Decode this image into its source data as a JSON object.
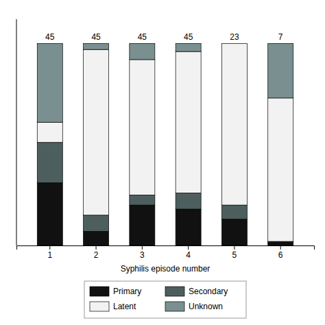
{
  "chart_data": {
    "type": "bar",
    "stacked": true,
    "categories": [
      "1",
      "2",
      "3",
      "4",
      "5",
      "6"
    ],
    "series": [
      {
        "name": "Primary",
        "color": "#111111",
        "values": [
          31,
          7,
          20,
          18,
          13,
          2
        ]
      },
      {
        "name": "Secondary",
        "color": "#4d5e5e",
        "values": [
          20,
          8,
          5,
          8,
          7,
          0
        ]
      },
      {
        "name": "Latent",
        "color": "#f2f2f2",
        "values": [
          10,
          82,
          67,
          70,
          80,
          71
        ]
      },
      {
        "name": "Unknown",
        "color": "#7a9090",
        "values": [
          39,
          3,
          8,
          4,
          0,
          27
        ]
      }
    ],
    "totals": [
      45,
      45,
      45,
      45,
      23,
      7
    ],
    "x_label": "Syphilis episode number",
    "ylim": [
      0,
      112
    ],
    "tick_labels": "x",
    "grid": false,
    "legend": "bottom"
  }
}
